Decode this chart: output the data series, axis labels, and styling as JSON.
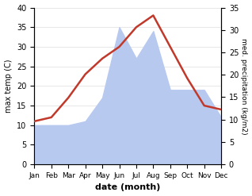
{
  "months": [
    "Jan",
    "Feb",
    "Mar",
    "Apr",
    "May",
    "Jun",
    "Jul",
    "Aug",
    "Sep",
    "Oct",
    "Nov",
    "Dec"
  ],
  "temperature": [
    11,
    12,
    17,
    23,
    27,
    30,
    35,
    38,
    30,
    22,
    15,
    14
  ],
  "precipitation_left_scale": [
    10,
    10,
    10,
    11,
    17,
    35,
    27,
    34,
    19,
    19,
    19,
    12
  ],
  "temp_color": "#c0392b",
  "precip_color": "#b8c9f0",
  "left_ylim": [
    0,
    40
  ],
  "right_ylim": [
    0,
    35
  ],
  "left_ylabel": "max temp (C)",
  "right_ylabel": "med. precipitation (kg/m2)",
  "xlabel": "date (month)",
  "bg_color": "#ffffff"
}
